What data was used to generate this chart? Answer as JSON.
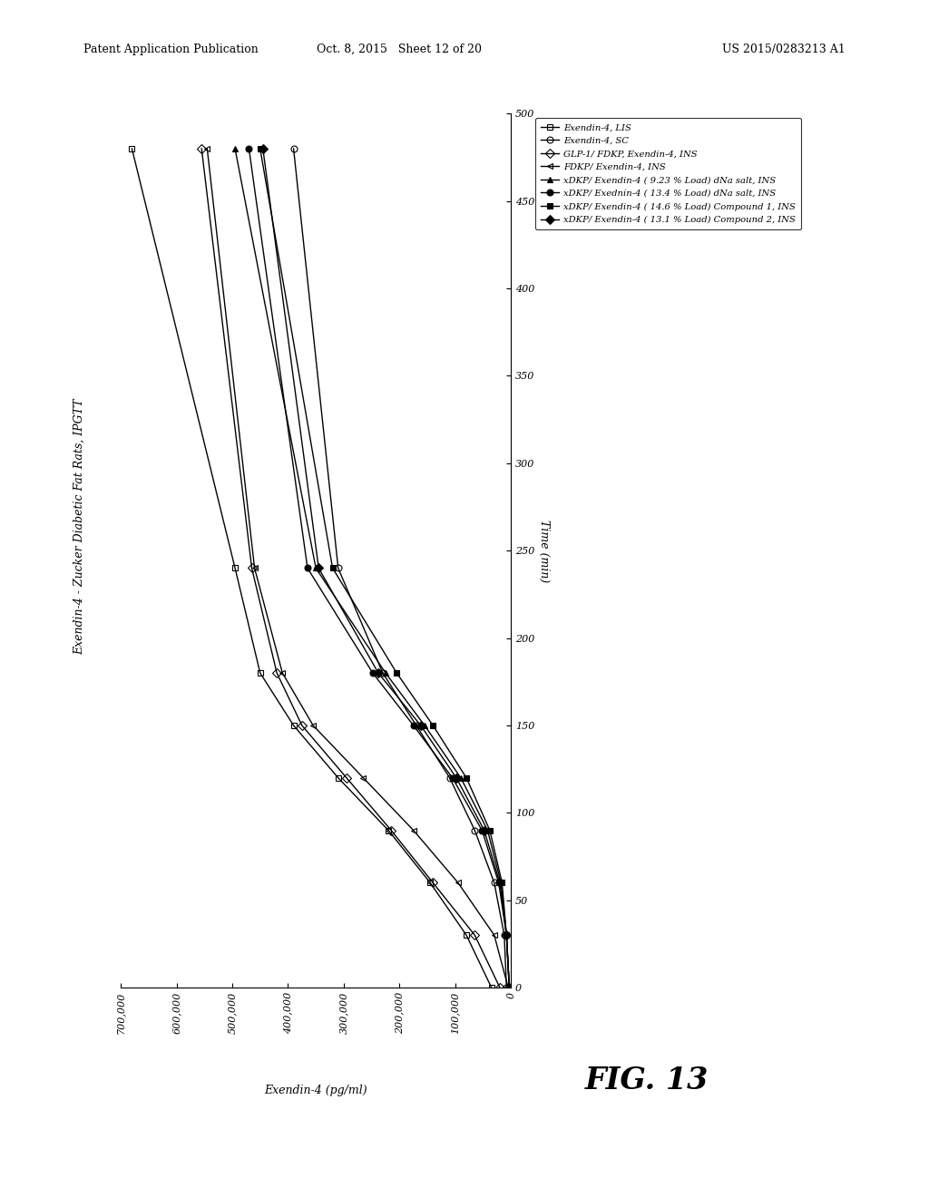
{
  "title": "Exendin-4 - Zucker Diabetic Fat Rats, IPGTT",
  "xlabel_rotated": "Time (min)",
  "ylabel_rotated": "Exendin-4 (pg/ml)",
  "time_lim": [
    0,
    500
  ],
  "conc_lim": [
    0,
    700000
  ],
  "time_ticks": [
    0,
    50,
    100,
    150,
    200,
    250,
    300,
    350,
    400,
    450,
    500
  ],
  "conc_ticks": [
    0,
    100000,
    200000,
    300000,
    400000,
    500000,
    600000,
    700000
  ],
  "conc_tick_labels": [
    "0",
    "100,000",
    "200,000",
    "300,000",
    "400,000",
    "500,000",
    "600,000",
    "700,000"
  ],
  "series": [
    {
      "label": "Exendin-4, LIS",
      "marker": "s",
      "fillstyle": "none",
      "time": [
        0,
        30,
        60,
        90,
        120,
        150,
        180,
        240,
        480
      ],
      "values": [
        35000,
        80000,
        145000,
        220000,
        310000,
        390000,
        450000,
        495000,
        680000
      ]
    },
    {
      "label": "Exendin-4, SC",
      "marker": "o",
      "fillstyle": "none",
      "time": [
        0,
        30,
        60,
        90,
        120,
        150,
        180,
        240,
        480
      ],
      "values": [
        8000,
        12000,
        30000,
        65000,
        110000,
        170000,
        230000,
        310000,
        390000
      ]
    },
    {
      "label": "GLP-1/ FDKP, Exendin-4, INS",
      "marker": "D",
      "fillstyle": "none",
      "time": [
        0,
        30,
        60,
        90,
        120,
        150,
        180,
        240,
        480
      ],
      "values": [
        20000,
        65000,
        140000,
        215000,
        295000,
        375000,
        420000,
        465000,
        555000
      ]
    },
    {
      "label": "FDKP/ Exendin-4, INS",
      "marker": "<",
      "fillstyle": "none",
      "time": [
        0,
        30,
        60,
        90,
        120,
        150,
        180,
        240,
        480
      ],
      "values": [
        5000,
        30000,
        95000,
        175000,
        265000,
        355000,
        410000,
        460000,
        545000
      ]
    },
    {
      "label": "xDKP/ Exendin-4 ( 9.23 % Load) dNa salt, INS",
      "marker": "^",
      "fillstyle": "full",
      "time": [
        0,
        30,
        60,
        90,
        120,
        150,
        180,
        240,
        480
      ],
      "values": [
        3000,
        8000,
        18000,
        42000,
        90000,
        155000,
        225000,
        350000,
        495000
      ]
    },
    {
      "label": "xDKP/ Exednin-4 ( 13.4 % Load) dNa salt, INS",
      "marker": "o",
      "fillstyle": "full",
      "time": [
        0,
        30,
        60,
        90,
        120,
        150,
        180,
        240,
        480
      ],
      "values": [
        3000,
        8000,
        22000,
        52000,
        105000,
        175000,
        248000,
        365000,
        470000
      ]
    },
    {
      "label": "xDKP/ Exendin-4 ( 14.6 % Load) Compound 1, INS",
      "marker": "s",
      "fillstyle": "full",
      "time": [
        0,
        30,
        60,
        90,
        120,
        150,
        180,
        240,
        480
      ],
      "values": [
        3000,
        8000,
        16000,
        38000,
        80000,
        140000,
        205000,
        320000,
        450000
      ]
    },
    {
      "label": "xDKP/ Exendin-4 ( 13.1 % Load) Compound 2, INS",
      "marker": "D",
      "fillstyle": "full",
      "time": [
        0,
        30,
        60,
        90,
        120,
        150,
        180,
        240,
        480
      ],
      "values": [
        3000,
        8000,
        20000,
        48000,
        98000,
        162000,
        238000,
        345000,
        445000
      ]
    }
  ],
  "background_color": "#ffffff",
  "header_left": "Patent Application Publication",
  "header_mid": "Oct. 8, 2015   Sheet 12 of 20",
  "header_right": "US 2015/0283213 A1",
  "fig_label": "FIG. 13"
}
